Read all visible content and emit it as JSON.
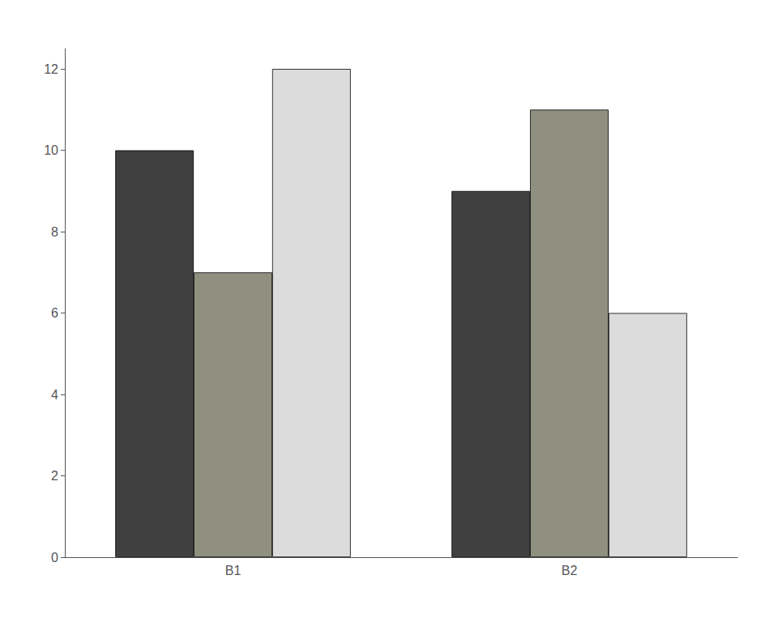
{
  "chart_data": {
    "type": "bar",
    "categories": [
      "B1",
      "B2"
    ],
    "series": [
      {
        "color": "#404040",
        "values": [
          10,
          9
        ]
      },
      {
        "color": "#909080",
        "values": [
          7,
          11
        ]
      },
      {
        "color": "#dcdcdc",
        "values": [
          12,
          6
        ]
      }
    ],
    "ylim": [
      0,
      12.5
    ],
    "yticks": [
      0,
      2,
      4,
      6,
      8,
      10,
      12
    ],
    "grid": false
  }
}
